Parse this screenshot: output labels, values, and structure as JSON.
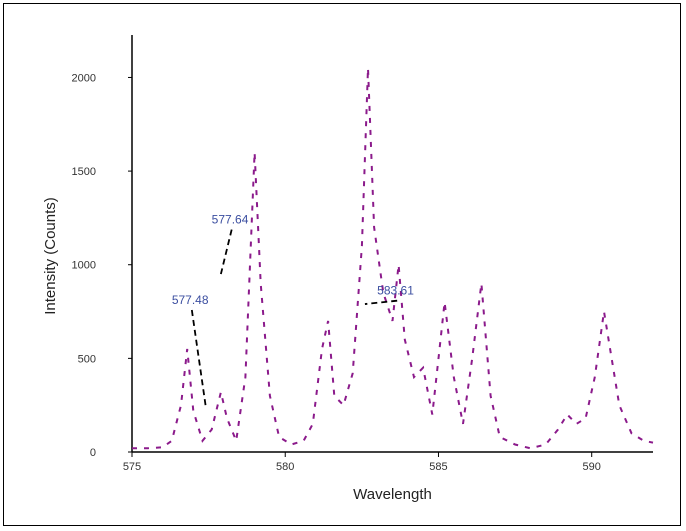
{
  "chart_data": {
    "type": "line",
    "title": "",
    "xlabel": "Wavelength",
    "ylabel": "Intensity (Counts)",
    "xlim": [
      575,
      592
    ],
    "ylim": [
      0,
      2200
    ],
    "x_ticks": [
      {
        "value": 575,
        "label": "575"
      },
      {
        "value": 580,
        "label": "580"
      },
      {
        "value": 585,
        "label": "585"
      },
      {
        "value": 590,
        "label": "590"
      }
    ],
    "y_ticks": [
      {
        "value": 0,
        "label": "0"
      },
      {
        "value": 500,
        "label": "500"
      },
      {
        "value": 1000,
        "label": "1000"
      },
      {
        "value": 1500,
        "label": "1500"
      },
      {
        "value": 2000,
        "label": "2000"
      }
    ],
    "series": [
      {
        "color": "#8b1a8b",
        "style": "dashed",
        "points": [
          [
            575.0,
            20
          ],
          [
            575.5,
            20
          ],
          [
            576.0,
            25
          ],
          [
            576.3,
            60
          ],
          [
            576.6,
            250
          ],
          [
            576.8,
            550
          ],
          [
            577.0,
            220
          ],
          [
            577.3,
            60
          ],
          [
            577.6,
            120
          ],
          [
            577.9,
            320
          ],
          [
            578.1,
            180
          ],
          [
            578.4,
            60
          ],
          [
            578.7,
            400
          ],
          [
            579.0,
            1600
          ],
          [
            579.2,
            900
          ],
          [
            579.5,
            300
          ],
          [
            579.8,
            80
          ],
          [
            580.2,
            40
          ],
          [
            580.6,
            60
          ],
          [
            580.9,
            150
          ],
          [
            581.2,
            550
          ],
          [
            581.4,
            700
          ],
          [
            581.6,
            300
          ],
          [
            581.9,
            250
          ],
          [
            582.2,
            420
          ],
          [
            582.5,
            1100
          ],
          [
            582.7,
            2050
          ],
          [
            582.9,
            1200
          ],
          [
            583.2,
            850
          ],
          [
            583.5,
            700
          ],
          [
            583.7,
            1000
          ],
          [
            583.9,
            600
          ],
          [
            584.2,
            400
          ],
          [
            584.5,
            450
          ],
          [
            584.8,
            200
          ],
          [
            585.0,
            500
          ],
          [
            585.2,
            800
          ],
          [
            585.5,
            400
          ],
          [
            585.8,
            150
          ],
          [
            586.1,
            500
          ],
          [
            586.4,
            900
          ],
          [
            586.7,
            300
          ],
          [
            587.0,
            80
          ],
          [
            587.5,
            40
          ],
          [
            588.0,
            20
          ],
          [
            588.5,
            40
          ],
          [
            588.9,
            120
          ],
          [
            589.2,
            200
          ],
          [
            589.5,
            150
          ],
          [
            589.8,
            180
          ],
          [
            590.1,
            400
          ],
          [
            590.4,
            750
          ],
          [
            590.6,
            550
          ],
          [
            590.9,
            250
          ],
          [
            591.3,
            100
          ],
          [
            591.7,
            60
          ],
          [
            592.0,
            50
          ]
        ]
      }
    ],
    "annotations": [
      {
        "text": "577.64",
        "x": 577.6,
        "y": 1220,
        "arrow_to_x": 577.9,
        "arrow_to_y": 950
      },
      {
        "text": "577.48",
        "x": 576.3,
        "y": 790,
        "arrow_to_x": 577.4,
        "arrow_to_y": 250
      },
      {
        "text": "583.61",
        "x": 583.0,
        "y": 840,
        "arrow_to_x": 582.6,
        "arrow_to_y": 790
      }
    ],
    "grid": false,
    "legend": "none"
  }
}
